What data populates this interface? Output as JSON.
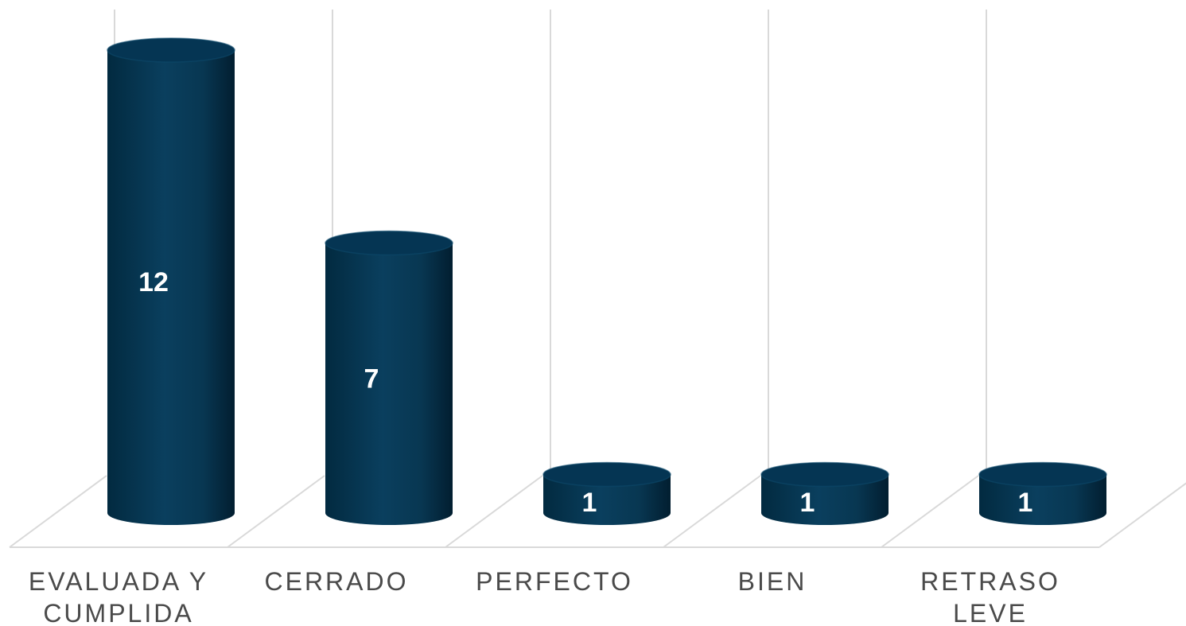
{
  "chart_data": {
    "type": "bar",
    "style": "3d-cylinder",
    "categories": [
      [
        "EVALUADA Y",
        "CUMPLIDA"
      ],
      [
        "CERRADO"
      ],
      [
        "PERFECTO"
      ],
      [
        "BIEN"
      ],
      [
        "RETRASO",
        "LEVE"
      ]
    ],
    "values": [
      12,
      7,
      1,
      1,
      1
    ],
    "data_labels": [
      "12",
      "7",
      "1",
      "1",
      "1"
    ],
    "ylim": [
      0,
      13
    ],
    "grid": true,
    "legend": "none",
    "colors": {
      "bar_dark": "#022a40",
      "bar_mid": "#0a3f5e",
      "bar_top": "#053553",
      "grid": "#d9d9d9",
      "label": "#4a4a4a"
    }
  }
}
